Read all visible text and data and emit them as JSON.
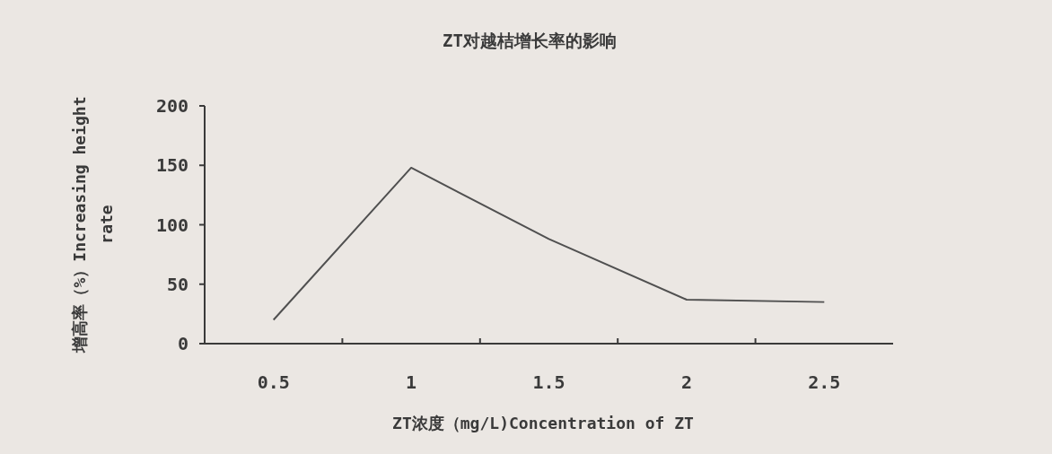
{
  "chart_data": {
    "type": "line",
    "title": "ZT对越桔增长率的影响",
    "xlabel": "ZT浓度（mg/L)Concentration of ZT",
    "ylabel": "增高率（%）Increasing height rate",
    "categories": [
      "0.5",
      "1",
      "1.5",
      "2",
      "2.5"
    ],
    "series": [
      {
        "color": "#505050",
        "values": [
          20,
          148,
          88,
          37,
          35
        ]
      }
    ],
    "ylim": [
      0,
      200
    ],
    "yticks": [
      0,
      50,
      100,
      150,
      200
    ],
    "grid": false,
    "marker": "none",
    "line_style": "solid"
  }
}
